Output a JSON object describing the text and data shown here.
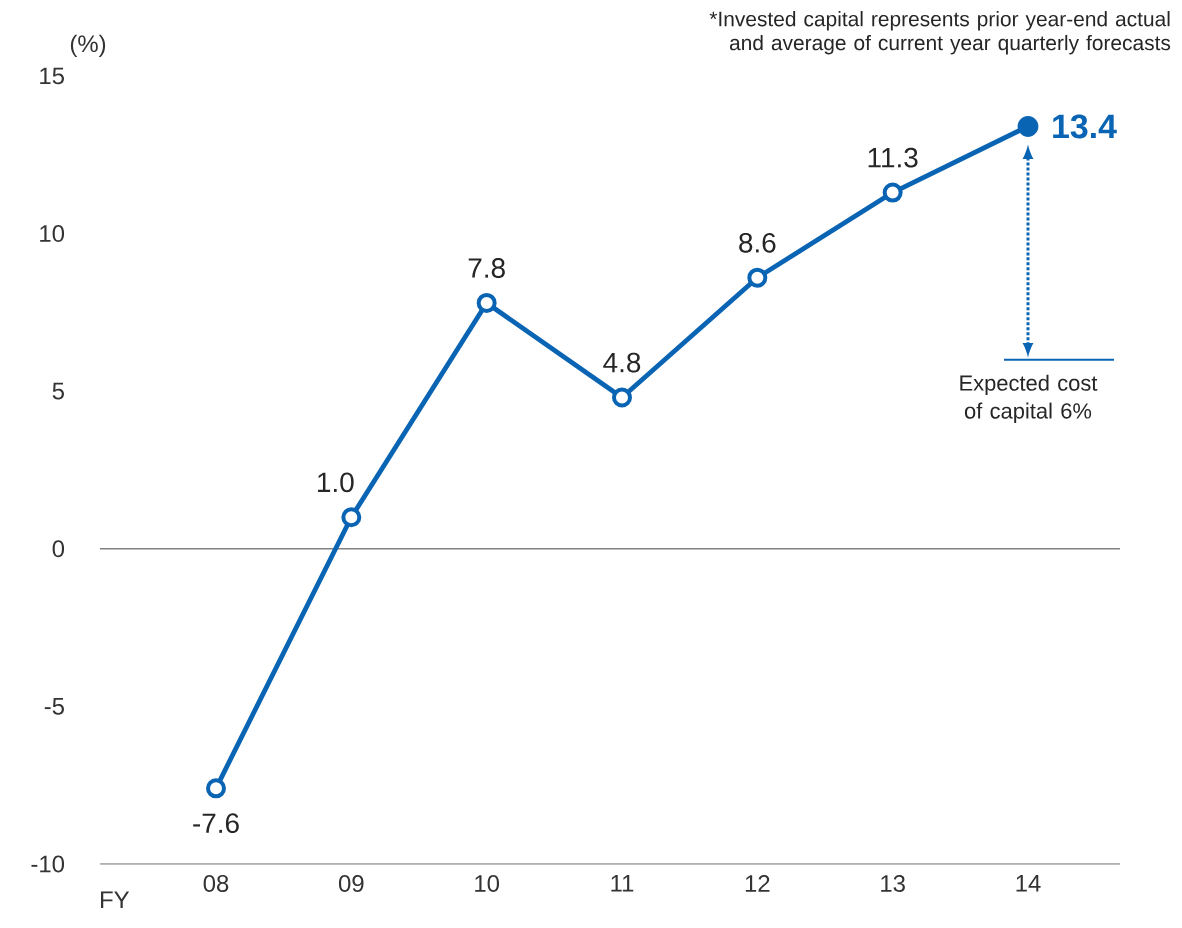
{
  "chart_data": {
    "type": "line",
    "ylabel": "(%)",
    "xlabel": "FY",
    "categories": [
      "08",
      "09",
      "10",
      "11",
      "12",
      "13",
      "14"
    ],
    "series": [
      {
        "color": "#0a64b4",
        "values": [
          -7.6,
          1.0,
          7.8,
          4.8,
          8.6,
          11.3,
          13.4
        ],
        "value_labels": [
          "-7.6",
          "1.0",
          "7.8",
          "4.8",
          "8.6",
          "11.3",
          "13.4"
        ]
      }
    ],
    "ylim": [
      -10,
      15
    ],
    "yticks": [
      {
        "value": -10,
        "label": "-10"
      },
      {
        "value": -5,
        "label": "-5"
      },
      0,
      5,
      10,
      15
    ],
    "marker": "circle",
    "grid": false,
    "ref_lines": [
      {
        "axis": "y",
        "value": 0,
        "color": "#808080"
      },
      {
        "axis": "y",
        "value": 6,
        "color": "#0a64b4",
        "label": "Expected cost of capital 6%"
      }
    ],
    "annotations": [
      "*Invested capital represents prior year-end actual and average of current year quarterly forecasts"
    ]
  }
}
